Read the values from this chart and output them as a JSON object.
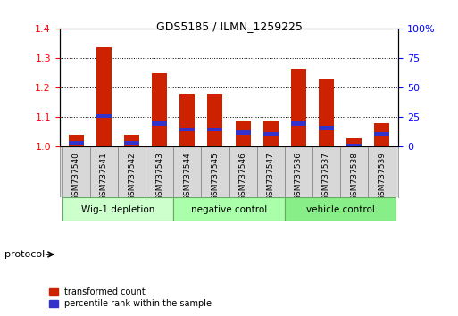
{
  "title": "GDS5185 / ILMN_1259225",
  "samples": [
    "GSM737540",
    "GSM737541",
    "GSM737542",
    "GSM737543",
    "GSM737544",
    "GSM737545",
    "GSM737546",
    "GSM737547",
    "GSM737536",
    "GSM737537",
    "GSM737538",
    "GSM737539"
  ],
  "red_values": [
    1.04,
    1.335,
    1.04,
    1.25,
    1.18,
    1.18,
    1.09,
    1.09,
    1.265,
    1.23,
    1.03,
    1.08
  ],
  "blue_tops": [
    1.02,
    1.11,
    1.02,
    1.085,
    1.065,
    1.065,
    1.055,
    1.05,
    1.085,
    1.07,
    1.01,
    1.05
  ],
  "groups": [
    {
      "label": "Wig-1 depletion",
      "start": 0,
      "end": 4
    },
    {
      "label": "negative control",
      "start": 4,
      "end": 8
    },
    {
      "label": "vehicle control",
      "start": 8,
      "end": 12
    }
  ],
  "group_colors": [
    "#ccffcc",
    "#aaffaa",
    "#88ee88"
  ],
  "ylim_left": [
    1.0,
    1.4
  ],
  "ylim_right": [
    0,
    100
  ],
  "yticks_left": [
    1.0,
    1.1,
    1.2,
    1.3,
    1.4
  ],
  "yticks_right": [
    0,
    25,
    50,
    75,
    100
  ],
  "bar_color_red": "#cc2200",
  "bar_color_blue": "#3333cc",
  "bar_width": 0.55,
  "legend_red_label": "transformed count",
  "legend_blue_label": "percentile rank within the sample",
  "protocol_label": "protocol"
}
